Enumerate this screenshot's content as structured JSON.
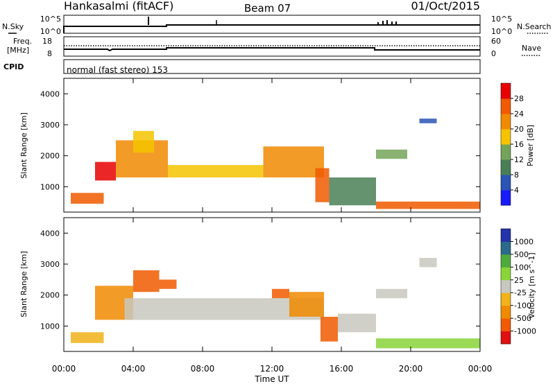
{
  "header": {
    "station": "Hankasalmi (fitACF)",
    "beam": "Beam 07",
    "date": "01/Oct/2015"
  },
  "panels": {
    "noise": {
      "left_label": "N.Sky",
      "right_label": "N.Search",
      "left_ticks": [
        "10^5",
        "10^0"
      ],
      "right_ticks": [
        "10^5",
        "10^0"
      ]
    },
    "freq": {
      "left_label_1": "Freq.",
      "left_label_2": "[MHz]",
      "right_label": "Nave",
      "left_ticks": [
        "18",
        "8"
      ],
      "right_ticks": [
        "60",
        "0"
      ]
    },
    "cpid": {
      "label": "CPID",
      "text": "normal (fast stereo) 153"
    }
  },
  "colors": {
    "power": [
      "#1a1aff",
      "#2a55b5",
      "#4a7f56",
      "#74a45a",
      "#f5c400",
      "#f08a00",
      "#f05a00",
      "#e60000"
    ],
    "velocity": [
      "#e01010",
      "#f05a00",
      "#f08a00",
      "#f1b21a",
      "#c8c8c0",
      "#8ad43a",
      "#4faa3c",
      "#2a6a8a",
      "#2433a8"
    ]
  },
  "chart_data": [
    {
      "type": "heatmap",
      "name": "power",
      "xlabel": "Time UT",
      "ylabel": "Slant Range [km]",
      "colorbar_label": "Power [dB]",
      "colorbar_ticks": [
        "28",
        "24",
        "20",
        "16",
        "12",
        "8",
        "4"
      ],
      "xticks": [
        "00:00",
        "04:00",
        "08:00",
        "12:00",
        "16:00",
        "20:00",
        "00:00"
      ],
      "yticks": [
        "4000",
        "3000",
        "2000",
        "1000"
      ],
      "xlim_hours": [
        0,
        24
      ],
      "ylim_km": [
        180,
        4500
      ],
      "bands": [
        {
          "t": [
            0.4,
            2.3
          ],
          "r": [
            450,
            800
          ],
          "level": 6
        },
        {
          "t": [
            1.8,
            3.0
          ],
          "r": [
            1200,
            1800
          ],
          "level": 7
        },
        {
          "t": [
            3.0,
            6.0
          ],
          "r": [
            1300,
            2500
          ],
          "level": 5
        },
        {
          "t": [
            4.0,
            5.2
          ],
          "r": [
            2100,
            2800
          ],
          "level": 4
        },
        {
          "t": [
            6.0,
            11.5
          ],
          "r": [
            1300,
            1700
          ],
          "level": 4
        },
        {
          "t": [
            11.5,
            15.0
          ],
          "r": [
            1300,
            2300
          ],
          "level": 5
        },
        {
          "t": [
            14.5,
            15.3
          ],
          "r": [
            500,
            1600
          ],
          "level": 6
        },
        {
          "t": [
            15.3,
            18.0
          ],
          "r": [
            400,
            1300
          ],
          "level": 2
        },
        {
          "t": [
            18.0,
            24.0
          ],
          "r": [
            280,
            520
          ],
          "level": 6
        },
        {
          "t": [
            18.0,
            19.8
          ],
          "r": [
            1900,
            2200
          ],
          "level": 3
        },
        {
          "t": [
            20.5,
            21.5
          ],
          "r": [
            3050,
            3200
          ],
          "level": 1
        }
      ]
    },
    {
      "type": "heatmap",
      "name": "velocity",
      "xlabel": "Time UT",
      "ylabel": "Slant Range [km]",
      "colorbar_label": "Velocity [m s^-1]",
      "colorbar_ticks": [
        "1000",
        "500",
        "100",
        "25",
        "-25",
        "-100",
        "-500",
        "-1000"
      ],
      "xticks": [
        "00:00",
        "04:00",
        "08:00",
        "12:00",
        "16:00",
        "20:00",
        "00:00"
      ],
      "yticks": [
        "4000",
        "3000",
        "2000",
        "1000"
      ],
      "xlim_hours": [
        0,
        24
      ],
      "ylim_km": [
        180,
        4500
      ],
      "bands": [
        {
          "t": [
            0.4,
            2.3
          ],
          "r": [
            450,
            800
          ],
          "level": 3
        },
        {
          "t": [
            1.8,
            4.0
          ],
          "r": [
            1200,
            2300
          ],
          "level": 2
        },
        {
          "t": [
            4.0,
            5.5
          ],
          "r": [
            2100,
            2800
          ],
          "level": 1
        },
        {
          "t": [
            5.5,
            6.5
          ],
          "r": [
            2200,
            2500
          ],
          "level": 1
        },
        {
          "t": [
            3.5,
            15.0
          ],
          "r": [
            1200,
            1900
          ],
          "level": 4
        },
        {
          "t": [
            12.0,
            13.0
          ],
          "r": [
            1900,
            2200
          ],
          "level": 1
        },
        {
          "t": [
            13.0,
            15.0
          ],
          "r": [
            1300,
            2100
          ],
          "level": 2
        },
        {
          "t": [
            14.8,
            15.8
          ],
          "r": [
            500,
            1300
          ],
          "level": 1
        },
        {
          "t": [
            15.8,
            18.0
          ],
          "r": [
            800,
            1400
          ],
          "level": 4
        },
        {
          "t": [
            18.0,
            24.0
          ],
          "r": [
            280,
            600
          ],
          "level": 5
        },
        {
          "t": [
            18.0,
            19.8
          ],
          "r": [
            1900,
            2200
          ],
          "level": 4
        },
        {
          "t": [
            20.5,
            21.5
          ],
          "r": [
            2900,
            3200
          ],
          "level": 4
        }
      ]
    }
  ]
}
